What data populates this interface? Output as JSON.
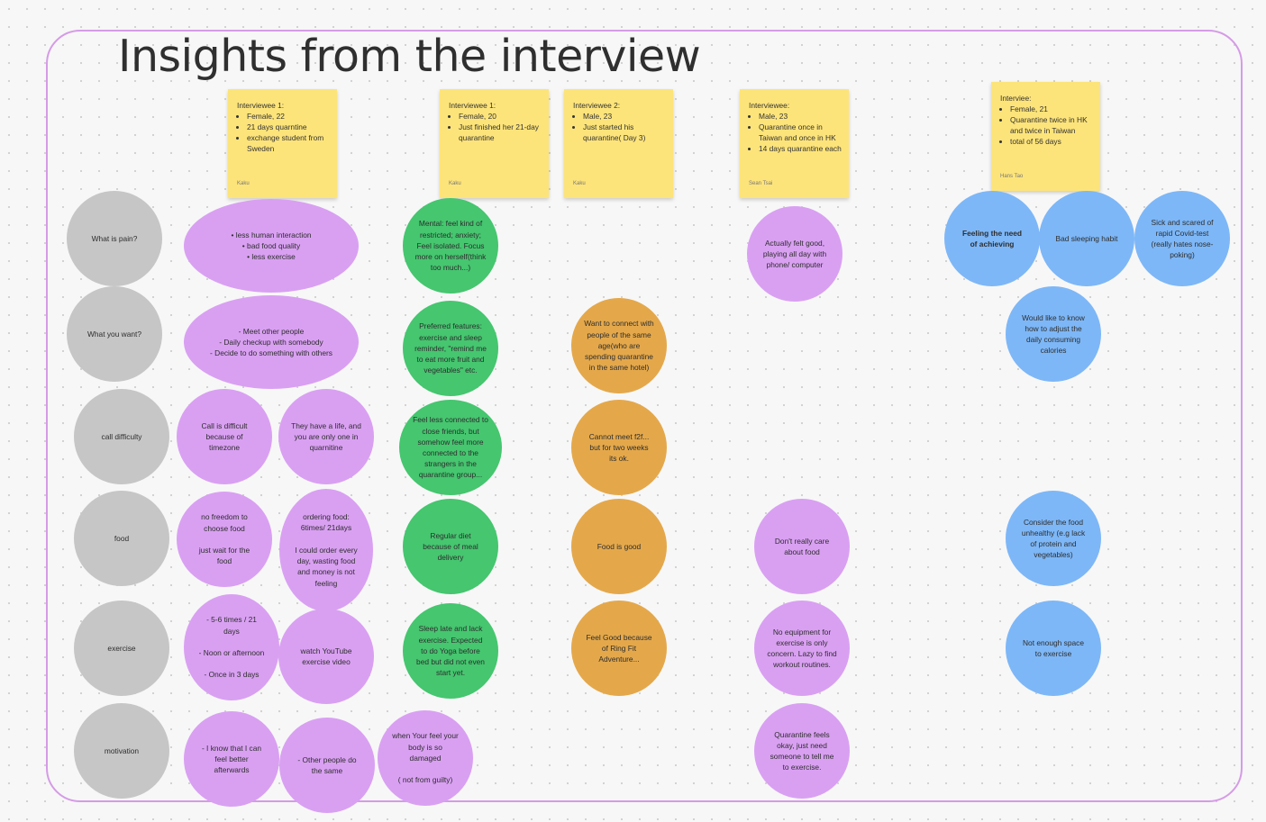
{
  "board": {
    "title": "Insights from the interview"
  },
  "stickies": [
    {
      "header": "Interviewee 1:",
      "items": [
        "Female, 22",
        "21 days quarntine",
        "exchange student from Sweden"
      ],
      "author": "Kaku"
    },
    {
      "header": "Interviewee 1:",
      "items": [
        "Female, 20",
        "Just finished her 21-day quarantine"
      ],
      "author": "Kaku"
    },
    {
      "header": "Interviewee 2:",
      "items": [
        "Male, 23",
        "Just started his quarantine( Day 3)"
      ],
      "author": "Kaku"
    },
    {
      "header": "Interviewee:",
      "items": [
        "Male, 23",
        "Quarantine once in Taiwan and once in HK",
        "14 days quarantine each"
      ],
      "author": "Sean Tsai"
    },
    {
      "header": "Interviee:",
      "items": [
        "Female, 21",
        "Quarantine twice in HK and twice in Taiwan",
        "total of 56 days"
      ],
      "author": "Hans Tao"
    }
  ],
  "rows": {
    "pain": "What is pain?",
    "want": "What you want?",
    "call": "call difficulty",
    "food": "food",
    "exercise": "exercise",
    "motivation": "motivation"
  },
  "notes": {
    "p1_pain": "• less human interaction\n• bad food quality\n• less exercise",
    "p1_want": "- Meet other people\n- Daily checkup with somebody\n- Decide to do something with others",
    "p1_call_a": "Call is difficult because of timezone",
    "p1_call_b": "They have a life, and you are only one in quarnitine",
    "p1_food_a": "no freedom to choose food\n\njust wait for the food",
    "p1_food_b": "ordering food: 6times/ 21days\n\nI could order every day, wasting food and money is not feeling",
    "p1_ex_a": "- 5-6 times / 21 days\n\n- Noon or afternoon\n\n- Once in 3 days",
    "p1_ex_b": "watch YouTube exercise video",
    "p1_mot_a": "- I know that I can feel better afterwards",
    "p1_mot_b": "- Other people do the same",
    "p1_mot_c": "when Your feel your body is so damaged\n\n( not from guilty)",
    "p2_pain": "Mental: feel kind of restricted; anxiety; Feel isolated. Focus more on herself(think too much...)",
    "p2_want": "Preferred features: exercise and sleep reminder, \"remind me to eat more fruit and vegetables\" etc.",
    "p2_call": "Feel less connected to close friends, but somehow feel more connected to the strangers in the quarantine group...",
    "p2_food": "Regular diet because of meal delivery",
    "p2_ex": "Sleep late and lack exercise. Expected to do Yoga before bed but did not even start yet.",
    "p3_want": "Want to connect with people of the same age(who are spending quarantine in the same hotel)",
    "p3_call": "Cannot meet f2f... but for two weeks its ok.",
    "p3_food": "Food is good",
    "p3_ex": "Feel Good because of Ring Fit Adventure...",
    "p4_pain": "Actually felt good, playing all day with phone/ computer",
    "p4_food": "Don't really care about food",
    "p4_ex": "No equipment for exercise is only concern. Lazy to find workout routines.",
    "p4_mot": "Quarantine feels okay, just need someone to tell me to exercise.",
    "p5_pain_a": "Feeling the need of achieving",
    "p5_pain_b": "Bad sleeping habit",
    "p5_pain_c": "Sick and scared of rapid Covid-test (really hates nose-poking)",
    "p5_want": "Would like to know how to adjust the daily consuming calories",
    "p5_food": "Consider the food unhealthy (e.g lack of protein and vegetables)",
    "p5_ex": "Not enough space to exercise"
  },
  "colors": {
    "row_label": "#c6c6c6",
    "interviewee_1": "#d9a0f2",
    "interviewee_2": "#45c66f",
    "interviewee_3": "#e4a84b",
    "interviewee_4": "#d9a0f2",
    "interviewee_5": "#7db7f7",
    "sticky": "#fde47a",
    "frame": "#d59be6"
  }
}
